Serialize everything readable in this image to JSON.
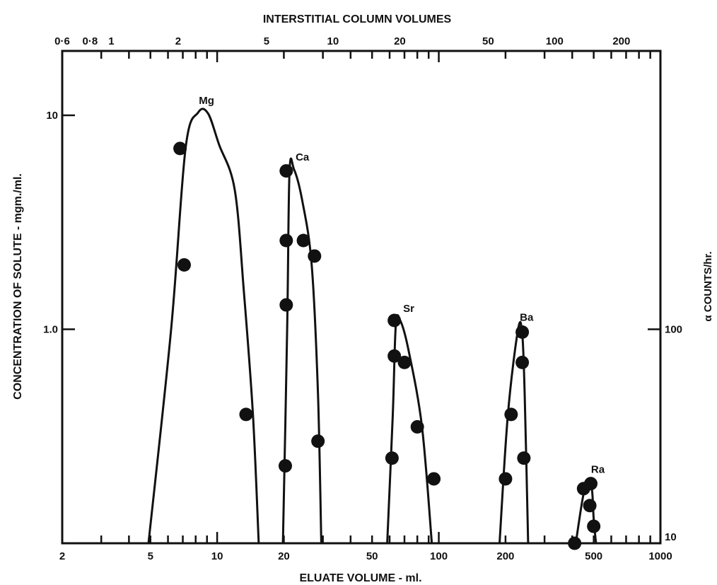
{
  "chart_data": {
    "type": "scatter",
    "title": "",
    "top_axis_label": "INTERSTITIAL COLUMN VOLUMES",
    "top_ticks": [
      "0·6",
      "0·8",
      "1",
      "2",
      "5",
      "10",
      "20",
      "50",
      "100",
      "200"
    ],
    "top_tick_positions_mL": [
      2,
      2.67,
      3.33,
      6.67,
      16.7,
      33.3,
      66.7,
      167,
      333,
      667
    ],
    "xlabel": "ELUATE VOLUME - ml.",
    "xscale": "log",
    "xlim": [
      2,
      1000
    ],
    "x_ticks": [
      "2",
      "5",
      "10",
      "20",
      "50",
      "100",
      "200",
      "500",
      "1000"
    ],
    "ylabel": "CONCENTRATION OF SOLUTE - mgm./ml.",
    "yscale": "log",
    "ylim": [
      0.1,
      20
    ],
    "y_ticks": [
      "1.0",
      "10"
    ],
    "y2label": "α COUNTS/hr.",
    "y2lim": [
      10,
      2000
    ],
    "y2_ticks": [
      "10",
      "100"
    ],
    "grid": false,
    "legend": "none",
    "series": [
      {
        "name": "Mg",
        "points": [
          [
            6.8,
            7.0
          ],
          [
            7.1,
            2.0
          ],
          [
            13.5,
            0.4
          ]
        ],
        "curve": [
          [
            4.9,
            0.1
          ],
          [
            6.2,
            1.0
          ],
          [
            7.2,
            7.0
          ],
          [
            8.2,
            10.3
          ],
          [
            9.1,
            10.2
          ],
          [
            10.2,
            7.3
          ],
          [
            12.0,
            4.5
          ],
          [
            13.2,
            1.5
          ],
          [
            14.5,
            0.4
          ],
          [
            15.4,
            0.1
          ]
        ]
      },
      {
        "name": "Ca",
        "points": [
          [
            20.5,
            5.5
          ],
          [
            20.5,
            2.6
          ],
          [
            20.5,
            1.3
          ],
          [
            20.3,
            0.23
          ],
          [
            24.5,
            2.6
          ],
          [
            27.5,
            2.2
          ],
          [
            28.5,
            0.3
          ]
        ],
        "curve": [
          [
            19.8,
            0.1
          ],
          [
            20.7,
            1.0
          ],
          [
            21.2,
            5.4
          ],
          [
            22.2,
            5.6
          ],
          [
            24.2,
            4.0
          ],
          [
            26.7,
            2.0
          ],
          [
            28.5,
            0.5
          ],
          [
            29.5,
            0.1
          ]
        ]
      },
      {
        "name": "Sr",
        "points": [
          [
            63,
            1.1
          ],
          [
            63,
            0.75
          ],
          [
            61.5,
            0.25
          ],
          [
            70,
            0.7
          ],
          [
            80,
            0.35
          ],
          [
            95,
            0.2
          ]
        ],
        "curve": [
          [
            58.5,
            0.1
          ],
          [
            62,
            0.4
          ],
          [
            64,
            1.05
          ],
          [
            67,
            1.1
          ],
          [
            73,
            0.8
          ],
          [
            84,
            0.35
          ],
          [
            93,
            0.1
          ]
        ]
      },
      {
        "name": "Ba",
        "points": [
          [
            200,
            0.2
          ],
          [
            212,
            0.4
          ],
          [
            238,
            0.97
          ],
          [
            238,
            0.7
          ],
          [
            242,
            0.25
          ]
        ],
        "curve": [
          [
            188,
            0.1
          ],
          [
            205,
            0.4
          ],
          [
            228,
            1.0
          ],
          [
            238,
            0.95
          ],
          [
            244,
            0.5
          ],
          [
            253,
            0.1
          ]
        ]
      },
      {
        "name": "Ra",
        "axis": "right",
        "points": [
          [
            410,
            10
          ],
          [
            450,
            18
          ],
          [
            485,
            19
          ],
          [
            480,
            15
          ],
          [
            500,
            12
          ]
        ],
        "curve": [
          [
            415,
            10
          ],
          [
            450,
            17
          ],
          [
            478,
            19.5
          ],
          [
            492,
            17.5
          ],
          [
            500,
            13
          ],
          [
            512,
            10
          ]
        ]
      }
    ]
  }
}
